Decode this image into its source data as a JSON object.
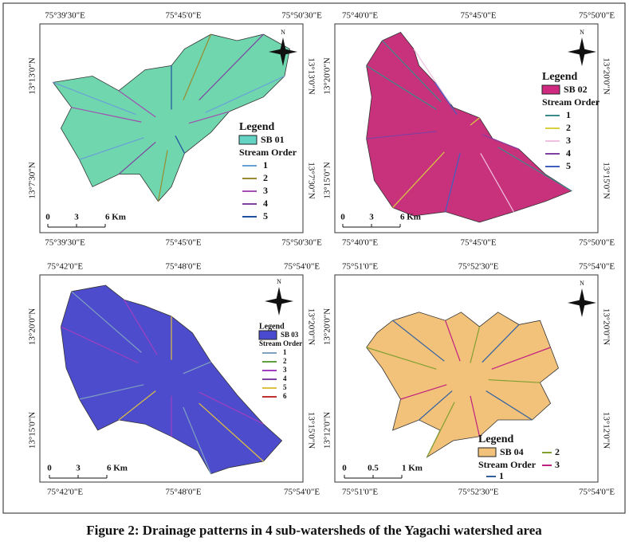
{
  "panels": [
    {
      "top": [
        "75°39'30\"E",
        "75°45'0\"E",
        "75°50'30\"E"
      ],
      "bottom": [
        "75°39'30\"E",
        "75°45'0\"E",
        "75°50'30\"E"
      ],
      "left": [
        "13°13'0\"N",
        "13°7'30\"N"
      ],
      "right": [
        "13°13'0\"N",
        "13°7'30\"N"
      ],
      "north": "N",
      "scale": [
        "0",
        "3",
        "6 Km"
      ],
      "legend": {
        "title": "Legend",
        "area": "SB 01",
        "area_color": "#63d3c4",
        "order_title": "Stream Order",
        "orders": [
          "1",
          "2",
          "3",
          "4",
          "5"
        ],
        "order_colors": [
          "#6aa0d8",
          "#9a8a30",
          "#a050b0",
          "#8040a0",
          "#2050a0"
        ]
      },
      "map_color": "#6fd6ae"
    },
    {
      "top": [
        "75°40'0\"E",
        "75°45'0\"E",
        "75°50'0\"E"
      ],
      "bottom": [
        "75°40'0\"E",
        "75°45'0\"E",
        "75°50'0\"E"
      ],
      "left": [
        "13°20'0\"N",
        "13°15'0\"N"
      ],
      "right": [
        "13°20'0\"N",
        "13°15'0\"N"
      ],
      "north": "N",
      "scale": [
        "0",
        "3",
        "6 Km"
      ],
      "legend": {
        "title": "Legend",
        "area": "SB 02",
        "area_color": "#d02a80",
        "order_title": "Stream Order",
        "orders": [
          "1",
          "2",
          "3",
          "4",
          "5"
        ],
        "order_colors": [
          "#3a8a8a",
          "#d8d040",
          "#f0c0e0",
          "#8040a0",
          "#4060c0"
        ]
      },
      "map_color": "#c8327c"
    },
    {
      "top": [
        "75°42'0\"E",
        "75°48'0\"E",
        "75°54'0\"E"
      ],
      "bottom": [
        "75°42'0\"E",
        "75°48'0\"E",
        "75°54'0\"E"
      ],
      "left": [
        "13°20'0\"N",
        "13°15'0\"N"
      ],
      "right": [
        "13°20'0\"N",
        "13°15'0\"N"
      ],
      "north": "N",
      "scale": [
        "0",
        "3",
        "6 Km"
      ],
      "legend": {
        "title": "Legend",
        "area": "SB 03",
        "area_color": "#4a4ad0",
        "order_title": "Stream Order",
        "orders": [
          "1",
          "2",
          "3",
          "4",
          "5",
          "6"
        ],
        "order_colors": [
          "#80a0c0",
          "#60a040",
          "#a040c0",
          "#8040a0",
          "#e0c040",
          "#c03030"
        ]
      },
      "map_color": "#4c4ccc"
    },
    {
      "top": [
        "75°51'0\"E",
        "75°52'30\"E",
        "75°54'0\"E"
      ],
      "bottom": [
        "75°51'0\"E",
        "75°52'30\"E",
        "75°54'0\"E"
      ],
      "left": [
        "13°20'0\"N",
        "13°12'0\"N"
      ],
      "right": [
        "13°20'0\"N",
        "13°12'0\"N"
      ],
      "north": "N",
      "scale": [
        "0",
        "0.5",
        "1 Km"
      ],
      "legend": {
        "title": "Legend",
        "area": "SB 04",
        "area_color": "#f2c27b",
        "order_title": "Stream Order",
        "orders": [
          "1",
          "2",
          "3"
        ],
        "order_colors": [
          "#3060a0",
          "#80a030",
          "#c02080"
        ]
      },
      "map_color": "#f2c27b"
    }
  ],
  "caption": "Figure 2:  Drainage patterns in 4 sub-watersheds of the Yagachi watershed area"
}
